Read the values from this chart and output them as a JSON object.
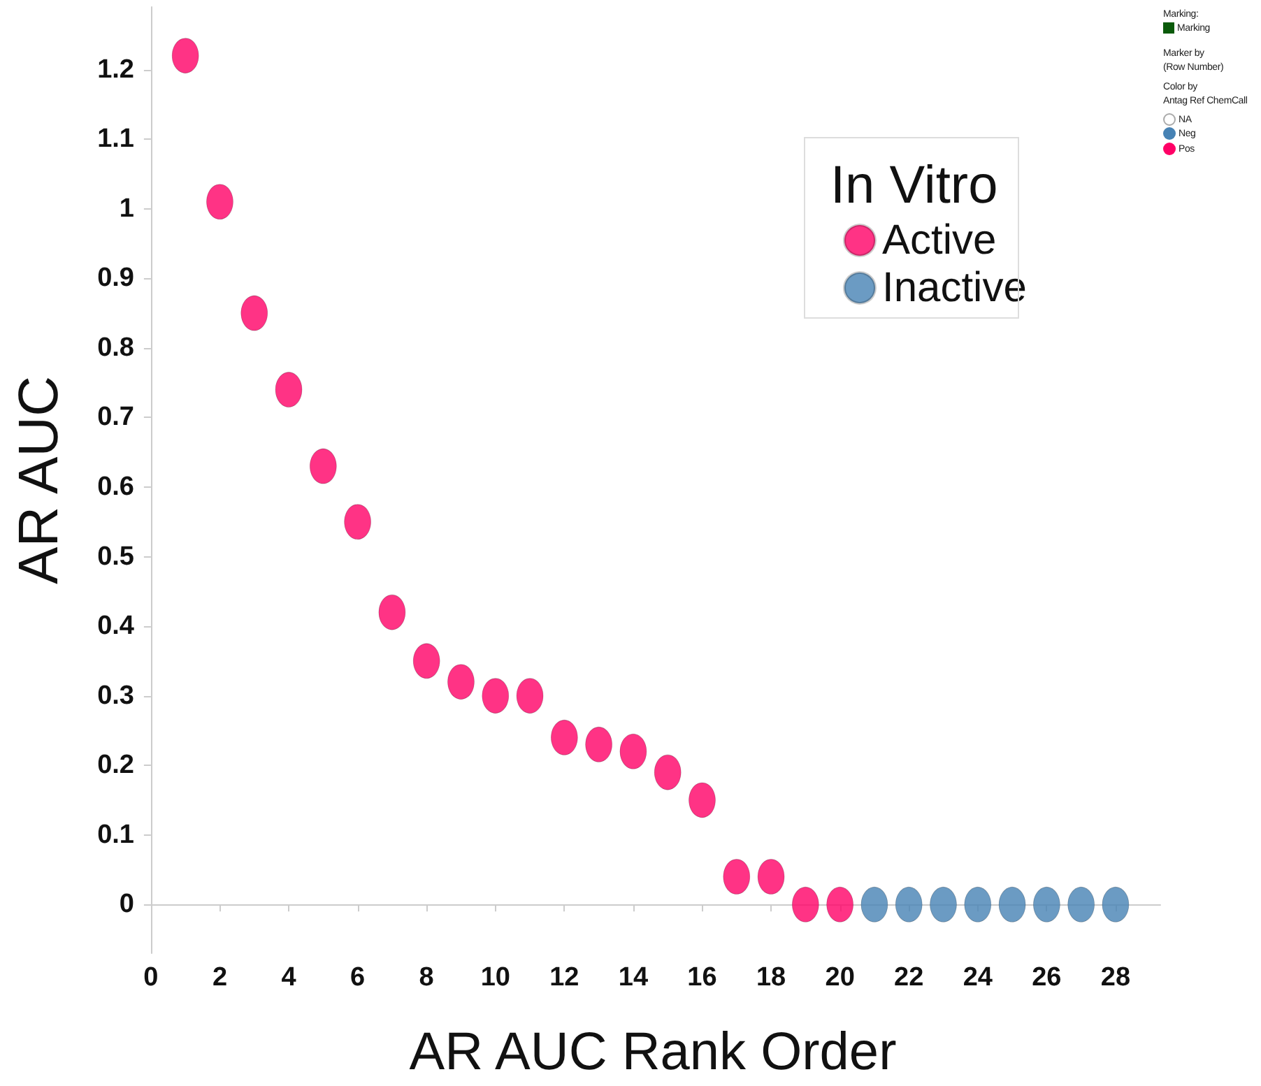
{
  "chart_data": {
    "type": "scatter",
    "xlabel": "AR AUC Rank Order",
    "ylabel": "AR AUC",
    "legend_title": "In Vitro",
    "legend": "top right",
    "marker": "circle",
    "grid": false,
    "xlim": [
      -0.16,
      29.3
    ],
    "xticks": [
      0,
      2,
      4,
      6,
      8,
      10,
      12,
      14,
      16,
      18,
      20,
      22,
      24,
      26,
      28
    ],
    "ylim": [
      -0.07,
      1.29
    ],
    "yticks": [
      0,
      0.1,
      0.2,
      0.3,
      0.4,
      0.5,
      0.6,
      0.7,
      0.8,
      0.9,
      1,
      1.1,
      1.2
    ],
    "series": [
      {
        "name": "Active",
        "color": "#ff0066",
        "x": [
          1,
          2,
          3,
          4,
          5,
          6,
          7,
          8,
          9,
          10,
          11,
          12,
          13,
          14,
          15,
          16,
          17,
          18,
          19,
          20
        ],
        "values": [
          1.22,
          1.01,
          0.85,
          0.74,
          0.63,
          0.55,
          0.42,
          0.35,
          0.32,
          0.3,
          0.3,
          0.24,
          0.23,
          0.22,
          0.19,
          0.15,
          0.04,
          0.04,
          0,
          0
        ]
      },
      {
        "name": "Inactive",
        "color": "#4682b4",
        "x": [
          21,
          22,
          23,
          24,
          25,
          26,
          27,
          28
        ],
        "values": [
          0,
          0,
          0,
          0,
          0,
          0,
          0,
          0
        ]
      }
    ],
    "annotations": [
      "Marking:",
      "Marking",
      "Marker by",
      "(Row Number)",
      "Color by",
      "Antag Ref ChemCall",
      "NA",
      "Neg",
      "Pos"
    ]
  }
}
